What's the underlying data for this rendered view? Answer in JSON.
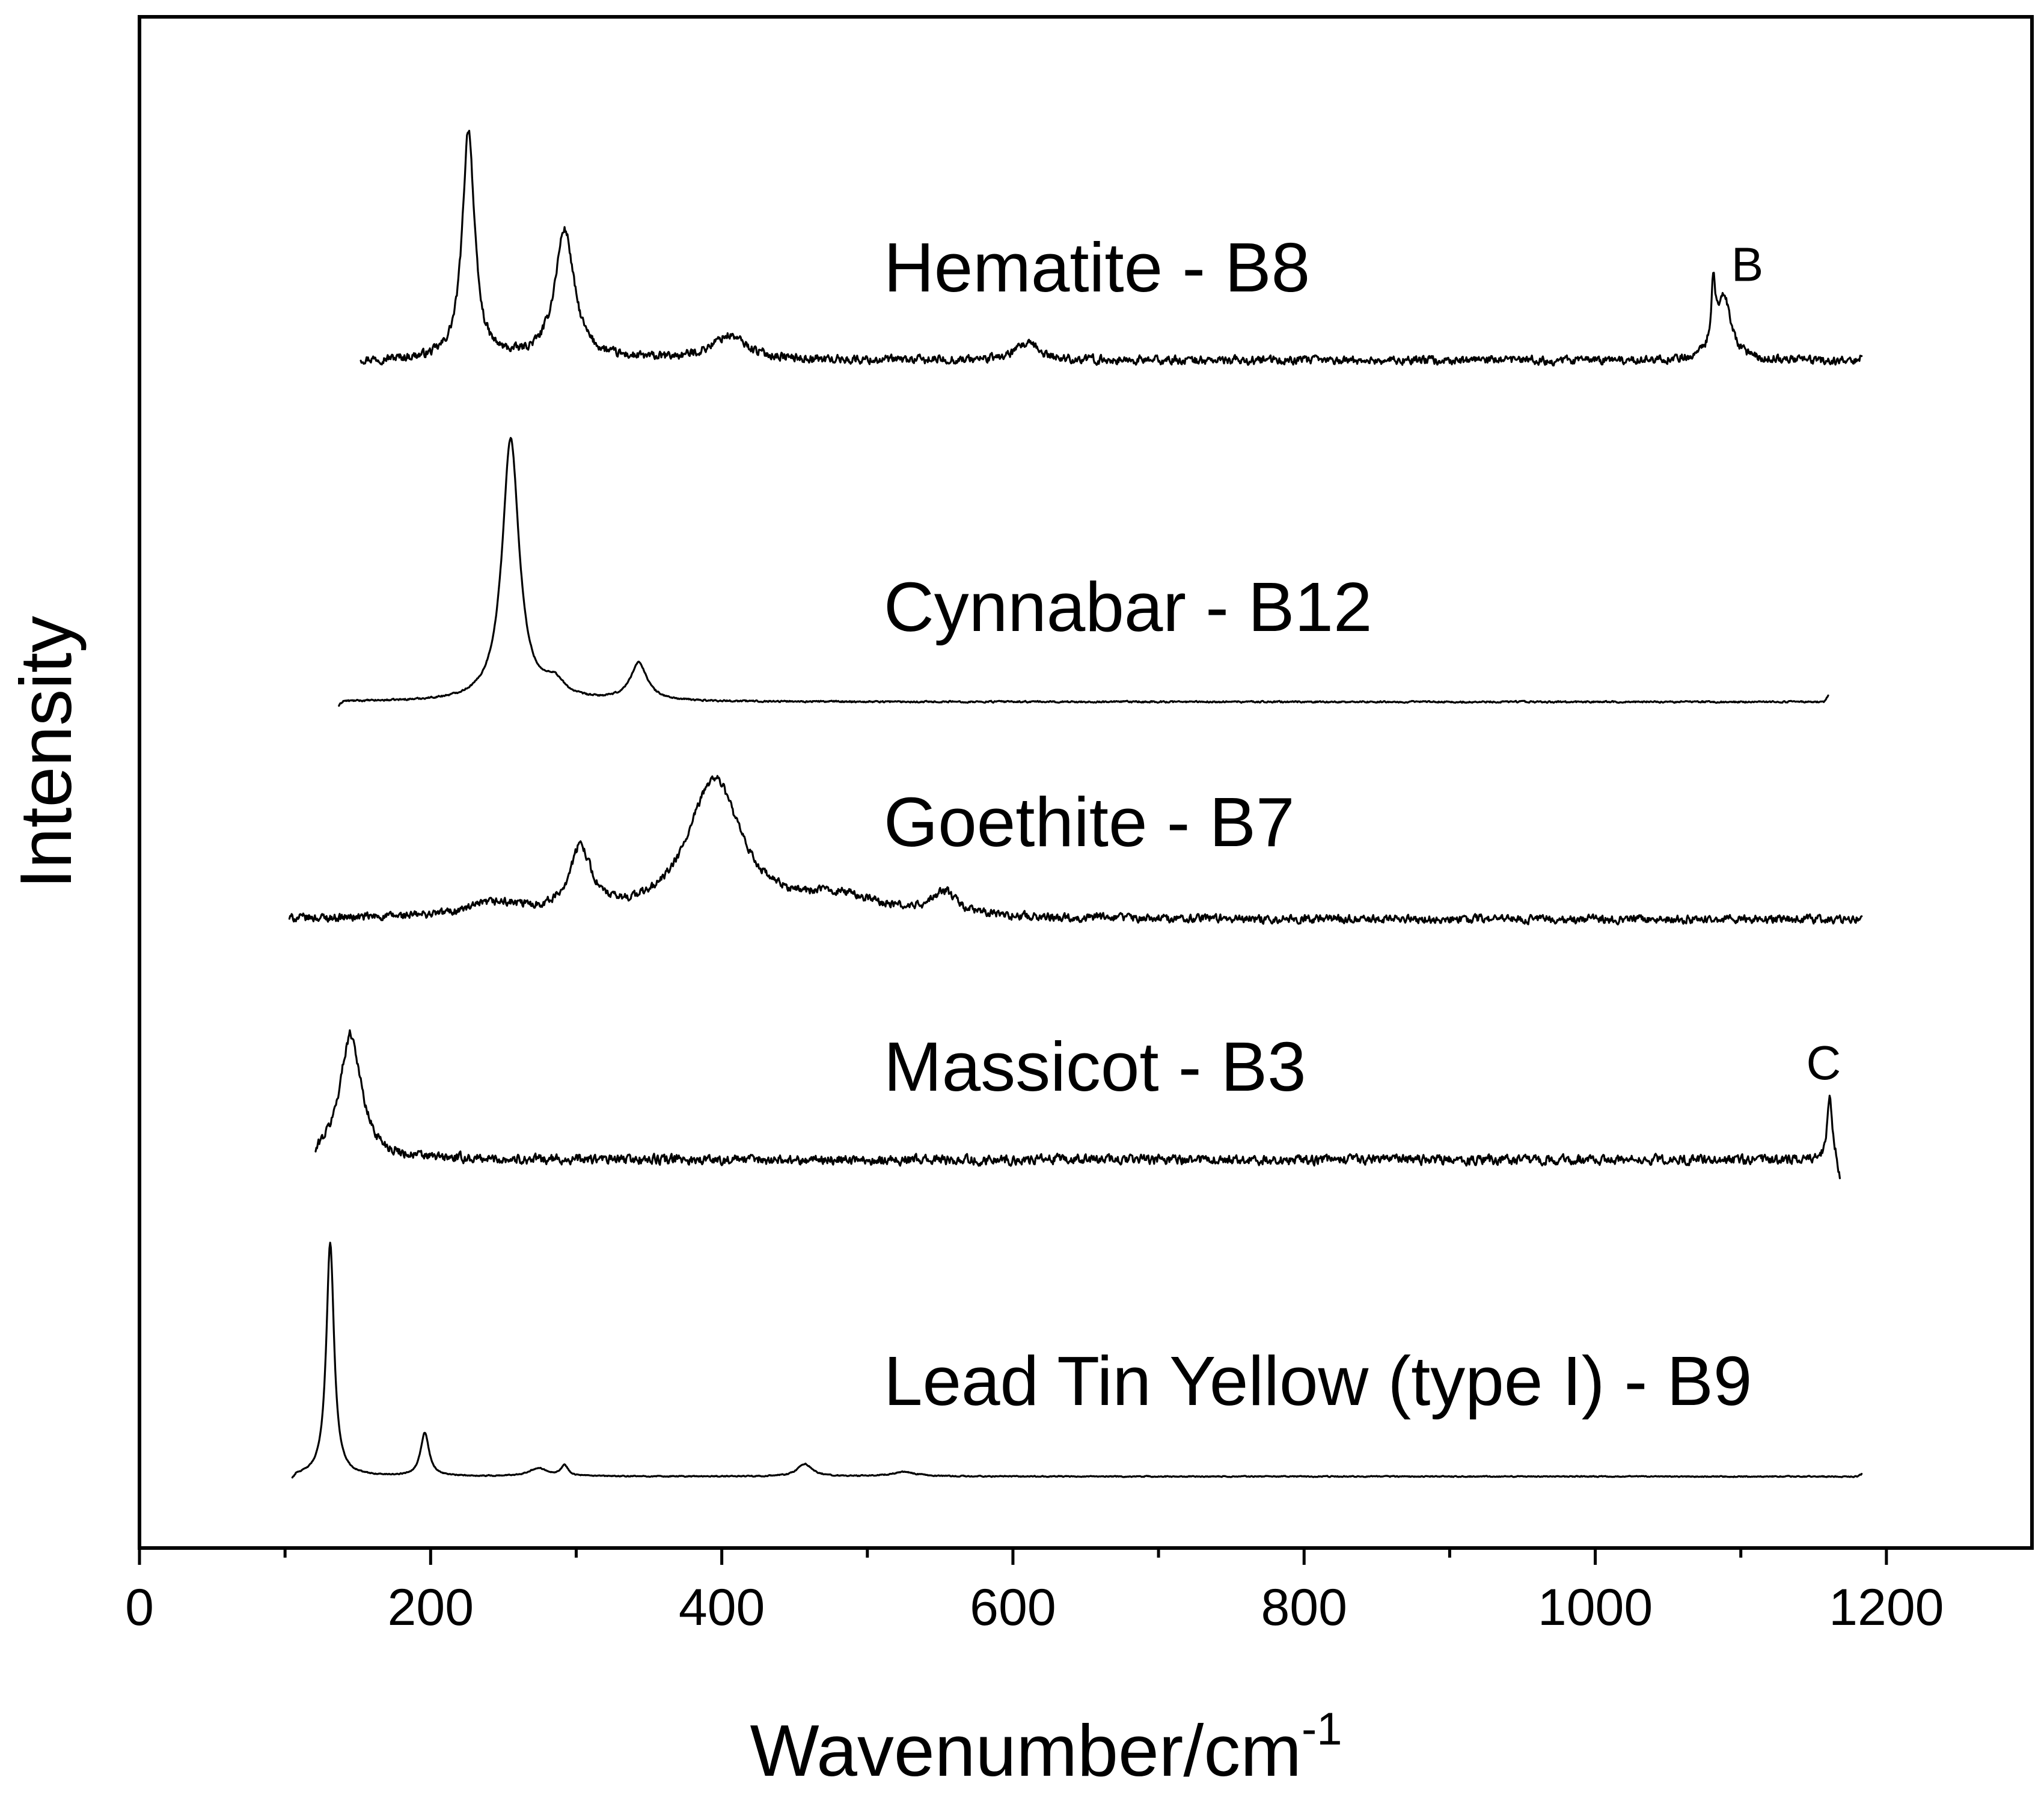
{
  "chart_data": {
    "type": "line",
    "title": "",
    "xlabel": "Wavenumber/cm",
    "xlabel_superscript": "-1",
    "ylabel": "Intensity",
    "xlim": [
      0,
      1300
    ],
    "xticks": [
      0,
      200,
      400,
      600,
      800,
      1000,
      1200
    ],
    "xtick_labels": [
      "0",
      "200",
      "400",
      "600",
      "800",
      "1000",
      "1200"
    ],
    "yticks_shown": false,
    "grid": false,
    "legend": "none",
    "series": [
      {
        "name": "Hematite - B8",
        "x_range": [
          152,
          1183
        ],
        "noise": 0.4,
        "peaks": [
          [
            226,
            14.2,
            5
          ],
          [
            292,
            8,
            8
          ],
          [
            405,
            1.5,
            15
          ],
          [
            610,
            1,
            10
          ],
          [
            1081,
            4,
            1.5
          ],
          [
            1088,
            4,
            6
          ]
        ],
        "points": [
          [
            152,
            0.0
          ],
          [
            226,
            14.2
          ],
          [
            292,
            8.0
          ],
          [
            405,
            1.5
          ],
          [
            610,
            1.0
          ],
          [
            1081,
            4.0
          ],
          [
            1088,
            4.0
          ],
          [
            1183,
            0.2
          ]
        ]
      },
      {
        "name": "Cynnabar - B12",
        "x_range": [
          137,
          1160
        ],
        "noise": 0.08,
        "peaks": [
          [
            255,
            16.8,
            7
          ],
          [
            285,
            1.0,
            8
          ],
          [
            343,
            2.4,
            7
          ]
        ],
        "points": [
          [
            137,
            -0.3
          ],
          [
            255,
            16.8
          ],
          [
            285,
            1.0
          ],
          [
            343,
            2.4
          ],
          [
            1160,
            0.4
          ]
        ]
      },
      {
        "name": "Goethite - B7",
        "x_range": [
          103,
          1183
        ],
        "noise": 0.38,
        "peaks": [
          [
            245,
            0.8,
            25
          ],
          [
            303,
            4.0,
            9
          ],
          [
            395,
            8.5,
            22
          ],
          [
            480,
            1.2,
            35
          ],
          [
            553,
            1.4,
            10
          ]
        ],
        "points": [
          [
            103,
            0.0
          ],
          [
            245,
            0.8
          ],
          [
            303,
            4.0
          ],
          [
            395,
            8.5
          ],
          [
            480,
            1.2
          ],
          [
            553,
            1.4
          ],
          [
            1183,
            0.2
          ]
        ]
      },
      {
        "name": "Massicot - B3",
        "x_range": [
          121,
          1168
        ],
        "noise": 0.55,
        "peaks": [
          [
            145,
            9.5,
            9
          ],
          [
            1161,
            4.5,
            2
          ]
        ],
        "points": [
          [
            121,
            -0.5
          ],
          [
            145,
            9.5
          ],
          [
            1161,
            4.5
          ],
          [
            1168,
            -1.5
          ]
        ]
      },
      {
        "name": "Lead Tin Yellow (type I) - B9",
        "x_range": [
          105,
          1183
        ],
        "noise": 0.07,
        "peaks": [
          [
            131,
            20.5,
            3.2
          ],
          [
            196,
            3.8,
            3.5
          ],
          [
            274,
            0.7,
            8
          ],
          [
            292,
            0.9,
            3
          ],
          [
            457,
            1.1,
            6
          ],
          [
            525,
            0.4,
            10
          ]
        ],
        "points": [
          [
            105,
            -0.4
          ],
          [
            131,
            20.5
          ],
          [
            196,
            3.8
          ],
          [
            274,
            0.7
          ],
          [
            292,
            0.9
          ],
          [
            457,
            1.1
          ],
          [
            525,
            0.4
          ],
          [
            1183,
            0.2
          ]
        ]
      }
    ],
    "annotations": [
      {
        "text": "B",
        "series": "Hematite - B8",
        "x": 1083
      },
      {
        "text": "C",
        "series": "Massicot - B3",
        "x": 1161
      }
    ]
  }
}
